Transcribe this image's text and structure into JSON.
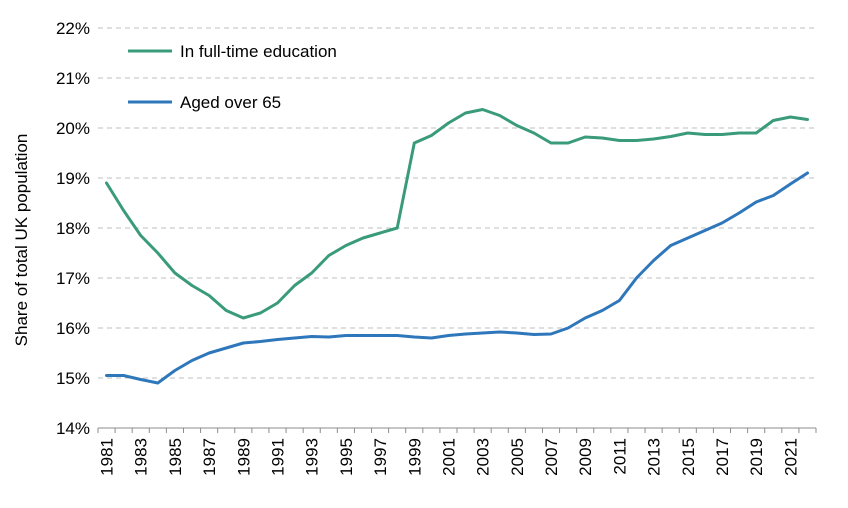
{
  "chart_data": {
    "type": "line",
    "title": "",
    "xlabel": "",
    "ylabel": "Share of total UK population",
    "ylim": [
      14,
      22
    ],
    "ytick_step": 1,
    "ytick_suffix": "%",
    "yticks": [
      "14%",
      "15%",
      "16%",
      "17%",
      "18%",
      "19%",
      "20%",
      "21%",
      "22%"
    ],
    "grid": true,
    "legend": "top-left",
    "x": [
      1981,
      1982,
      1983,
      1984,
      1985,
      1986,
      1987,
      1988,
      1989,
      1990,
      1991,
      1992,
      1993,
      1994,
      1995,
      1996,
      1997,
      1998,
      1999,
      2000,
      2001,
      2002,
      2003,
      2004,
      2005,
      2006,
      2007,
      2008,
      2009,
      2010,
      2011,
      2012,
      2013,
      2014,
      2015,
      2016,
      2017,
      2018,
      2019,
      2020,
      2021,
      2022
    ],
    "xticks": [
      "1981",
      "1983",
      "1985",
      "1987",
      "1989",
      "1991",
      "1993",
      "1995",
      "1997",
      "1999",
      "2001",
      "2003",
      "2005",
      "2007",
      "2009",
      "2011",
      "2013",
      "2015",
      "2017",
      "2019",
      "2021"
    ],
    "series": [
      {
        "name": "In full-time education",
        "color": "#3a9b7b",
        "values": [
          18.9,
          18.35,
          17.85,
          17.5,
          17.1,
          16.85,
          16.65,
          16.35,
          16.2,
          16.3,
          16.5,
          16.85,
          17.1,
          17.45,
          17.65,
          17.8,
          17.9,
          18.0,
          19.7,
          19.85,
          20.1,
          20.3,
          20.37,
          20.25,
          20.05,
          19.9,
          19.7,
          19.7,
          19.82,
          19.8,
          19.75,
          19.75,
          19.78,
          19.83,
          19.9,
          19.87,
          19.87,
          19.9,
          19.9,
          20.15,
          20.22,
          20.17
        ]
      },
      {
        "name": "Aged over 65",
        "color": "#2f77bb",
        "values": [
          15.05,
          15.05,
          14.97,
          14.9,
          15.15,
          15.35,
          15.5,
          15.6,
          15.7,
          15.73,
          15.77,
          15.8,
          15.83,
          15.82,
          15.85,
          15.85,
          15.85,
          15.85,
          15.82,
          15.8,
          15.85,
          15.88,
          15.9,
          15.92,
          15.9,
          15.87,
          15.88,
          16.0,
          16.2,
          16.35,
          16.55,
          17.0,
          17.35,
          17.65,
          17.8,
          17.95,
          18.1,
          18.3,
          18.52,
          18.65,
          18.88,
          19.1
        ]
      }
    ]
  }
}
